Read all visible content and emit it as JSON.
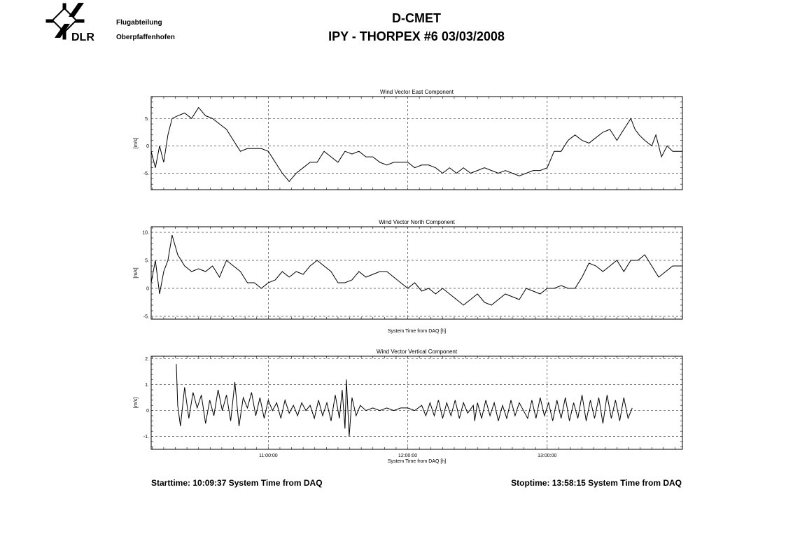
{
  "header": {
    "logo_text": "DLR",
    "dept_line1": "Flugabteilung",
    "dept_line2": "Oberpfaffenhofen",
    "title": "D-CMET",
    "subtitle": "IPY - THORPEX #6   03/03/2008"
  },
  "footer": {
    "start": "Starttime: 10:09:37 System Time from DAQ",
    "stop": "Stoptime: 13:58:15 System Time from DAQ"
  },
  "chart_data": [
    {
      "type": "line",
      "title": "Wind Vector East Component",
      "ylabel": "[m/s]",
      "xlabel": "",
      "xlim": [
        10.16,
        13.97
      ],
      "ylim": [
        -8,
        9
      ],
      "yticks": [
        {
          "v": -5,
          "l": "-5."
        },
        {
          "v": 0,
          "l": "0"
        },
        {
          "v": 5,
          "l": "5."
        }
      ],
      "xticks": [
        {
          "v": 11,
          "l": ""
        },
        {
          "v": 12,
          "l": ""
        },
        {
          "v": 13,
          "l": ""
        }
      ],
      "grid": true,
      "series": [
        {
          "color": "#000000",
          "x": [
            10.16,
            10.19,
            10.22,
            10.25,
            10.28,
            10.31,
            10.35,
            10.4,
            10.45,
            10.5,
            10.55,
            10.6,
            10.65,
            10.7,
            10.75,
            10.8,
            10.85,
            10.9,
            10.95,
            11.0,
            11.05,
            11.1,
            11.15,
            11.2,
            11.25,
            11.3,
            11.35,
            11.4,
            11.45,
            11.5,
            11.55,
            11.6,
            11.65,
            11.7,
            11.75,
            11.8,
            11.85,
            11.9,
            11.95,
            12.0,
            12.05,
            12.1,
            12.15,
            12.2,
            12.25,
            12.3,
            12.35,
            12.4,
            12.45,
            12.5,
            12.55,
            12.6,
            12.65,
            12.7,
            12.75,
            12.8,
            12.85,
            12.9,
            12.95,
            13.0,
            13.05,
            13.1,
            13.15,
            13.2,
            13.25,
            13.3,
            13.35,
            13.4,
            13.45,
            13.5,
            13.55,
            13.6,
            13.63,
            13.66,
            13.7,
            13.75,
            13.78,
            13.82,
            13.86,
            13.9,
            13.94,
            13.97
          ],
          "y": [
            -1,
            -4,
            0,
            -3,
            2,
            5,
            5.5,
            6,
            5,
            7,
            5.5,
            5,
            4,
            3,
            1,
            -1,
            -0.5,
            -0.5,
            -0.5,
            -1,
            -3,
            -5,
            -6.5,
            -5,
            -4,
            -3,
            -3,
            -1,
            -2,
            -3,
            -1,
            -1.5,
            -1,
            -2,
            -2,
            -3,
            -3.5,
            -3,
            -3,
            -3,
            -4,
            -3.5,
            -3.5,
            -4,
            -5,
            -4,
            -5,
            -4,
            -5,
            -4.5,
            -4,
            -4.5,
            -5,
            -4.5,
            -5,
            -5.5,
            -5,
            -4.5,
            -4.5,
            -4,
            -1,
            -1,
            1,
            2,
            1,
            0.5,
            1.5,
            2.5,
            3,
            1,
            3,
            5,
            3,
            2,
            1,
            0,
            2,
            -2,
            0,
            -1,
            -1,
            -1
          ]
        }
      ]
    },
    {
      "type": "line",
      "title": "Wind Vector North Component",
      "ylabel": "[m/s]",
      "xlabel": "System Time from DAQ [h]",
      "xlim": [
        10.16,
        13.97
      ],
      "ylim": [
        -5.5,
        11
      ],
      "yticks": [
        {
          "v": -5,
          "l": "-5."
        },
        {
          "v": 0,
          "l": "0"
        },
        {
          "v": 5,
          "l": "5."
        },
        {
          "v": 10,
          "l": "10."
        }
      ],
      "xticks": [
        {
          "v": 11,
          "l": ""
        },
        {
          "v": 12,
          "l": ""
        },
        {
          "v": 13,
          "l": ""
        }
      ],
      "grid": true,
      "series": [
        {
          "color": "#000000",
          "x": [
            10.16,
            10.19,
            10.22,
            10.25,
            10.28,
            10.31,
            10.35,
            10.4,
            10.45,
            10.5,
            10.55,
            10.6,
            10.65,
            10.7,
            10.75,
            10.8,
            10.85,
            10.9,
            10.95,
            11.0,
            11.05,
            11.1,
            11.15,
            11.2,
            11.25,
            11.3,
            11.35,
            11.4,
            11.45,
            11.5,
            11.55,
            11.6,
            11.65,
            11.7,
            11.75,
            11.8,
            11.85,
            11.9,
            11.95,
            12.0,
            12.05,
            12.1,
            12.15,
            12.2,
            12.25,
            12.3,
            12.35,
            12.4,
            12.45,
            12.5,
            12.55,
            12.6,
            12.65,
            12.7,
            12.75,
            12.8,
            12.85,
            12.9,
            12.95,
            13.0,
            13.05,
            13.1,
            13.15,
            13.2,
            13.25,
            13.3,
            13.35,
            13.4,
            13.45,
            13.5,
            13.55,
            13.6,
            13.65,
            13.7,
            13.75,
            13.8,
            13.85,
            13.9,
            13.97
          ],
          "y": [
            1,
            5,
            -1,
            3,
            5,
            9.5,
            6,
            4,
            3,
            3.5,
            3,
            4,
            2,
            5,
            4,
            3,
            1,
            1,
            0,
            1,
            1.5,
            3,
            2,
            3,
            2.5,
            4,
            5,
            4,
            3,
            1,
            1,
            1.5,
            3,
            2,
            2.5,
            3,
            3,
            2,
            1,
            0,
            1,
            -0.5,
            0,
            -1,
            0,
            -1,
            -2,
            -3,
            -2,
            -1,
            -2.5,
            -3,
            -2,
            -1,
            -1.5,
            -2,
            0,
            -0.5,
            -1,
            0,
            0,
            0.5,
            0,
            0,
            2,
            4.5,
            4,
            3,
            4,
            5,
            3,
            5,
            5,
            6,
            4,
            2,
            3,
            4,
            4
          ]
        }
      ]
    },
    {
      "type": "line",
      "title": "Wind Vector Vertical Component",
      "ylabel": "[m/s]",
      "xlabel": "System Time from DAQ [h]",
      "xlim": [
        10.16,
        13.97
      ],
      "ylim": [
        -1.5,
        2.1
      ],
      "yticks": [
        {
          "v": -1,
          "l": "-1."
        },
        {
          "v": 0,
          "l": "0"
        },
        {
          "v": 1,
          "l": "1."
        },
        {
          "v": 2,
          "l": "2."
        }
      ],
      "xticks": [
        {
          "v": 11,
          "l": "11:00:00"
        },
        {
          "v": 12,
          "l": "12:00:00"
        },
        {
          "v": 13,
          "l": "13:00:00"
        }
      ],
      "grid": true,
      "series": [
        {
          "color": "#000000",
          "x": [
            10.34,
            10.35,
            10.37,
            10.4,
            10.43,
            10.46,
            10.49,
            10.52,
            10.55,
            10.58,
            10.61,
            10.64,
            10.67,
            10.7,
            10.73,
            10.76,
            10.79,
            10.82,
            10.85,
            10.88,
            10.91,
            10.94,
            10.97,
            11.0,
            11.03,
            11.06,
            11.09,
            11.12,
            11.15,
            11.18,
            11.21,
            11.24,
            11.27,
            11.3,
            11.33,
            11.36,
            11.39,
            11.42,
            11.45,
            11.48,
            11.51,
            11.53,
            11.55,
            11.56,
            11.58,
            11.6,
            11.63,
            11.66,
            11.7,
            11.75,
            11.8,
            11.85,
            11.9,
            11.95,
            12.0,
            12.05,
            12.1,
            12.13,
            12.16,
            12.19,
            12.22,
            12.25,
            12.28,
            12.31,
            12.34,
            12.37,
            12.4,
            12.43,
            12.47,
            12.48,
            12.5,
            12.53,
            12.56,
            12.59,
            12.62,
            12.65,
            12.68,
            12.71,
            12.74,
            12.77,
            12.8,
            12.86,
            12.89,
            12.92,
            12.95,
            12.98,
            13.01,
            13.04,
            13.07,
            13.1,
            13.13,
            13.16,
            13.19,
            13.22,
            13.25,
            13.28,
            13.31,
            13.34,
            13.37,
            13.4,
            13.43,
            13.46,
            13.49,
            13.52,
            13.55,
            13.58,
            13.61
          ],
          "y": [
            1.8,
            0.2,
            -0.6,
            0.9,
            -0.3,
            0.7,
            0.1,
            0.6,
            -0.5,
            0.4,
            -0.2,
            0.8,
            0.0,
            0.6,
            -0.4,
            1.1,
            -0.6,
            0.5,
            0.1,
            0.7,
            -0.2,
            0.5,
            -0.3,
            0.4,
            0.0,
            0.3,
            -0.3,
            0.4,
            -0.1,
            0.2,
            -0.2,
            0.3,
            0.0,
            0.2,
            -0.3,
            0.4,
            -0.2,
            0.3,
            -0.4,
            0.6,
            -0.3,
            0.8,
            -0.7,
            1.2,
            -1.0,
            0.5,
            -0.2,
            0.2,
            0.0,
            0.1,
            0.0,
            0.1,
            0.0,
            0.1,
            0.1,
            0.0,
            0.2,
            -0.2,
            0.3,
            -0.2,
            0.4,
            -0.3,
            0.3,
            -0.2,
            0.4,
            -0.3,
            0.3,
            -0.1,
            0.2,
            -0.4,
            0.3,
            -0.3,
            0.4,
            -0.2,
            0.3,
            -0.4,
            0.2,
            -0.3,
            0.4,
            -0.2,
            0.3,
            -0.3,
            0.4,
            -0.3,
            0.5,
            -0.2,
            0.3,
            -0.4,
            0.4,
            -0.3,
            0.5,
            -0.4,
            0.3,
            -0.3,
            0.6,
            -0.4,
            0.4,
            -0.3,
            0.5,
            -0.5,
            0.6,
            -0.3,
            0.4,
            -0.4,
            0.5,
            -0.3,
            0.1
          ]
        }
      ]
    }
  ]
}
